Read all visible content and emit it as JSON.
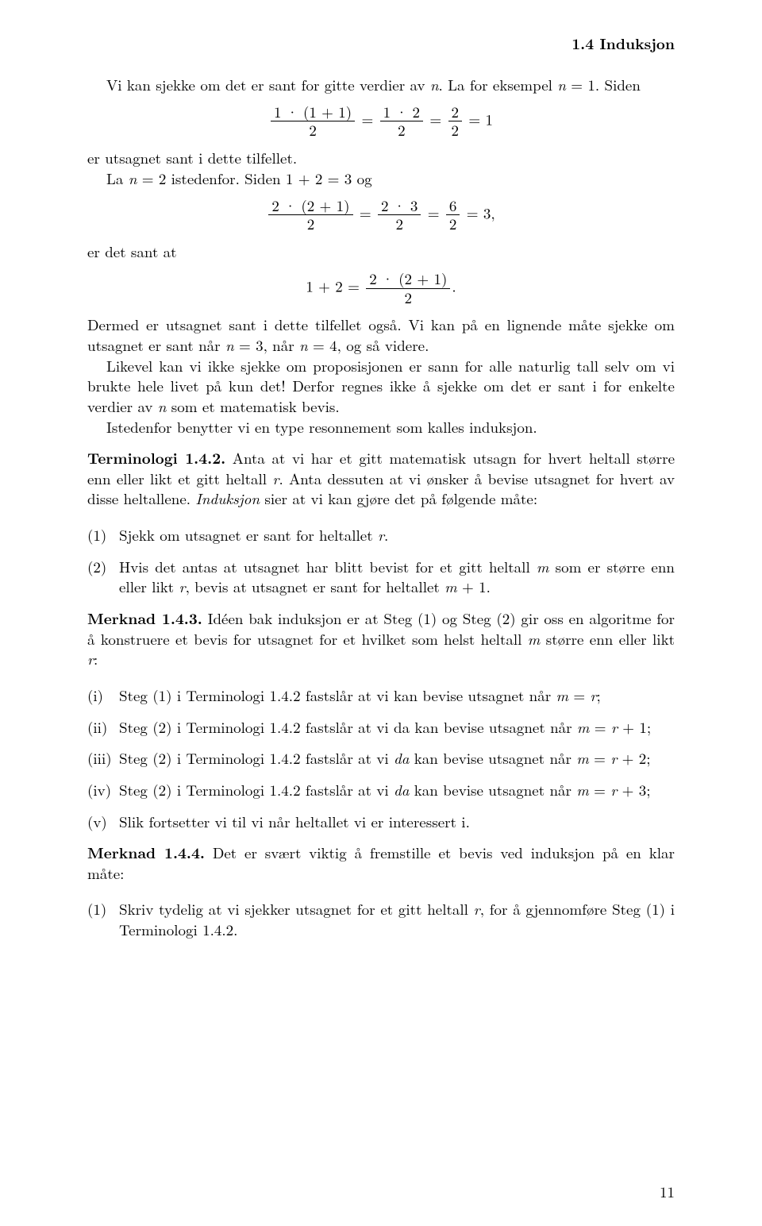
{
  "header": {
    "section": "1.4 Induksjon"
  },
  "p1a": "Vi kan sjekke om det er sant for gitte verdier av ",
  "p1b": ". La for eksempel ",
  "p1c": " = 1. Siden",
  "eq1": {
    "lhs_num": "1 · (1 + 1)",
    "lhs_den": "2",
    "mid_num": "1 · 2",
    "mid_den": "2",
    "rhs_num": "2",
    "rhs_den": "2",
    "result": "1"
  },
  "p2a": "er utsagnet sant i dette tilfellet.",
  "p2b_a": "La ",
  "p2b_b": " = 2 istedenfor. Siden 1 + 2 = 3 og",
  "eq2": {
    "lhs_num": "2 · (2 + 1)",
    "lhs_den": "2",
    "mid_num": "2 · 3",
    "mid_den": "2",
    "rhs_num": "6",
    "rhs_den": "2",
    "result": "3,"
  },
  "p3": "er det sant at",
  "eq3": {
    "lhs": "1 + 2 =",
    "num": "2 · (2 + 1)",
    "den": "2",
    "tail": "."
  },
  "p4a": "Dermed er utsagnet sant i dette tilfellet også. Vi kan på en lignende måte sjekke om utsagnet er sant når ",
  "p4b": " = 3, når ",
  "p4c": " = 4, og så videre.",
  "p5a": "Likevel kan vi ikke sjekke om proposisjonen er sann for alle naturlig tall selv om vi brukte hele livet på kun det! Derfor regnes ikke å sjekke om det er sant i for enkelte verdier av ",
  "p5b": " som et matematisk bevis.",
  "p6": "Istedenfor benytter vi en type resonnement som kalles induksjon.",
  "term142": {
    "label": "Terminologi 1.4.2.",
    "t1": " Anta at vi har et gitt matematisk utsagn for hvert heltall større enn eller likt et gitt heltall ",
    "t2": ". Anta dessuten at vi ønsker å bevise utsagnet for hvert av disse heltallene. ",
    "t3": "Induksjon",
    "t4": " sier at vi kan gjøre det på følgende måte:"
  },
  "list1": {
    "i1_m": "(1)",
    "i1a": "Sjekk om utsagnet er sant for heltallet ",
    "i1b": ".",
    "i2_m": "(2)",
    "i2a": "Hvis det antas at utsagnet har blitt bevist for et gitt heltall ",
    "i2b": " som er større enn eller likt ",
    "i2c": ", bevis at utsagnet er sant for heltallet ",
    "i2d": " + 1."
  },
  "merk143": {
    "label": "Merknad 1.4.3.",
    "t1": " Idéen bak induksjon er at Steg (1) og Steg (2) gir oss en algoritme for å konstruere et bevis for utsagnet for et hvilket som helst heltall ",
    "t2": " større enn eller likt ",
    "t3": ":"
  },
  "list2": {
    "i1_m": "(i)",
    "i1a": "Steg (1) i Terminologi 1.4.2 fastslår at vi kan bevise utsagnet når ",
    "i1b": " = ",
    "i1c": ";",
    "i2_m": "(ii)",
    "i2a": "Steg (2) i Terminologi 1.4.2 fastslår at vi da kan bevise utsagnet når ",
    "i2b": " = ",
    "i2c": " + 1;",
    "i3_m": "(iii)",
    "i3a": "Steg (2) i Terminologi 1.4.2 fastslår at vi ",
    "i3it": "da",
    "i3b": " kan bevise utsagnet når ",
    "i3c": " = ",
    "i3d": " + 2;",
    "i4_m": "(iv)",
    "i4a": "Steg (2) i Terminologi 1.4.2 fastslår at vi ",
    "i4it": "da",
    "i4b": " kan bevise utsagnet når ",
    "i4c": " = ",
    "i4d": " + 3;",
    "i5_m": "(v)",
    "i5a": "Slik fortsetter vi til vi når heltallet vi er interessert i."
  },
  "merk144": {
    "label": "Merknad 1.4.4.",
    "t1": " Det er svært viktig å fremstille et bevis ved induksjon på en klar måte:"
  },
  "list3": {
    "i1_m": "(1)",
    "i1a": "Skriv tydelig at vi sjekker utsagnet for et gitt heltall ",
    "i1b": ", for å gjennomføre Steg (1) i Terminologi 1.4.2."
  },
  "pagenum": "11",
  "vars": {
    "n": "n",
    "m": "m",
    "r": "r"
  }
}
